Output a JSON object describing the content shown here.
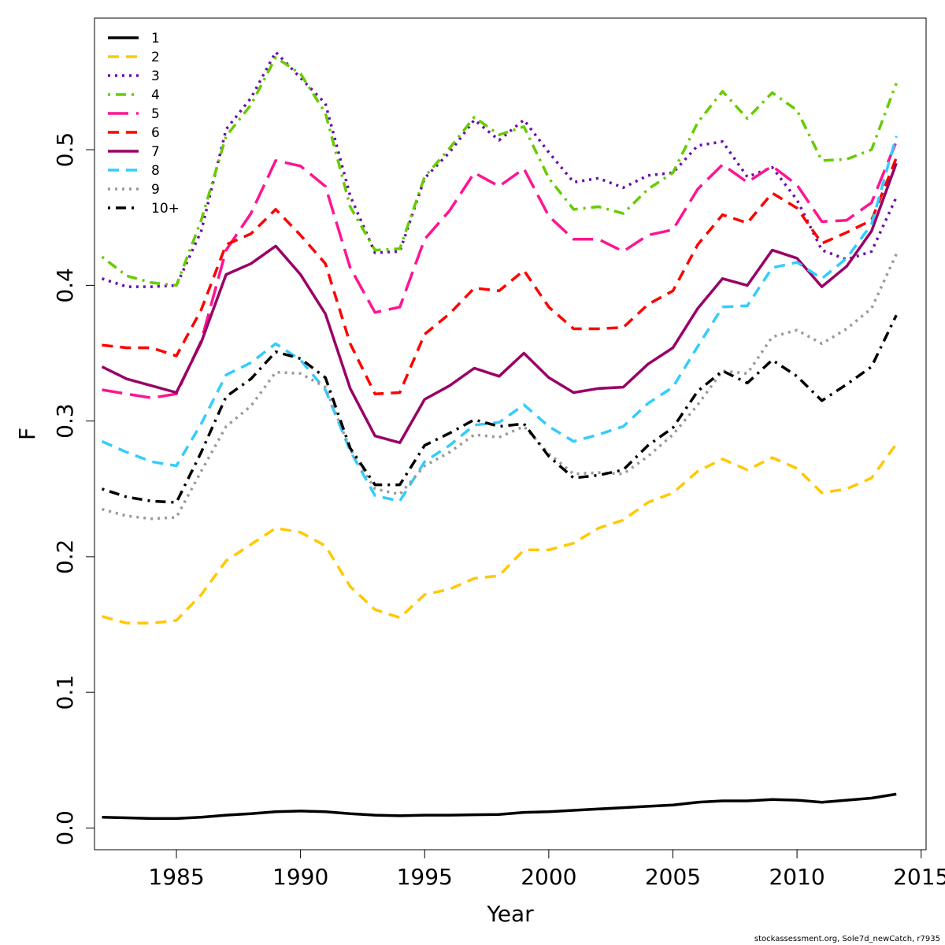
{
  "chart_data": {
    "type": "line",
    "title": "",
    "xlabel": "Year",
    "ylabel": "F",
    "xlim": [
      1981.7,
      2015.2
    ],
    "ylim": [
      -0.016,
      0.597
    ],
    "x_ticks": [
      1985,
      1990,
      1995,
      2000,
      2005,
      2010,
      2015
    ],
    "y_ticks": [
      0.0,
      0.1,
      0.2,
      0.3,
      0.4,
      0.5
    ],
    "y_tick_labels": [
      "0.0",
      "0.1",
      "0.2",
      "0.3",
      "0.4",
      "0.5"
    ],
    "grid": false,
    "legend_placement": "top-left",
    "x": [
      1982,
      1983,
      1984,
      1985,
      1986,
      1987,
      1988,
      1989,
      1990,
      1991,
      1992,
      1993,
      1994,
      1995,
      1996,
      1997,
      1998,
      1999,
      2000,
      2001,
      2002,
      2003,
      2004,
      2005,
      2006,
      2007,
      2008,
      2009,
      2010,
      2011,
      2012,
      2013,
      2014
    ],
    "series": [
      {
        "name": "1",
        "color": "#000000",
        "dash": "solid",
        "values": [
          0.008,
          0.0075,
          0.007,
          0.007,
          0.008,
          0.0095,
          0.0105,
          0.012,
          0.0125,
          0.012,
          0.0105,
          0.0095,
          0.009,
          0.0095,
          0.0095,
          0.0098,
          0.01,
          0.0115,
          0.012,
          0.013,
          0.014,
          0.015,
          0.016,
          0.017,
          0.019,
          0.02,
          0.02,
          0.021,
          0.0205,
          0.019,
          0.0205,
          0.022,
          0.025
        ]
      },
      {
        "name": "2",
        "color": "#ffc800",
        "dash": "dashed",
        "values": [
          0.156,
          0.151,
          0.151,
          0.153,
          0.172,
          0.197,
          0.209,
          0.221,
          0.218,
          0.208,
          0.178,
          0.161,
          0.155,
          0.172,
          0.176,
          0.184,
          0.186,
          0.205,
          0.205,
          0.21,
          0.221,
          0.227,
          0.24,
          0.247,
          0.263,
          0.272,
          0.264,
          0.273,
          0.265,
          0.247,
          0.25,
          0.258,
          0.283
        ]
      },
      {
        "name": "3",
        "color": "#6a0dad",
        "dash": "dotted",
        "values": [
          0.405,
          0.399,
          0.399,
          0.4,
          0.44,
          0.515,
          0.538,
          0.572,
          0.553,
          0.534,
          0.466,
          0.424,
          0.425,
          0.479,
          0.498,
          0.522,
          0.507,
          0.522,
          0.498,
          0.476,
          0.479,
          0.472,
          0.481,
          0.483,
          0.503,
          0.506,
          0.48,
          0.487,
          0.463,
          0.426,
          0.419,
          0.425,
          0.465
        ]
      },
      {
        "name": "4",
        "color": "#66cc00",
        "dash": "dotdash",
        "values": [
          0.421,
          0.407,
          0.402,
          0.4,
          0.448,
          0.51,
          0.533,
          0.568,
          0.556,
          0.527,
          0.458,
          0.426,
          0.427,
          0.48,
          0.501,
          0.524,
          0.511,
          0.517,
          0.479,
          0.456,
          0.458,
          0.453,
          0.471,
          0.483,
          0.52,
          0.543,
          0.523,
          0.542,
          0.529,
          0.492,
          0.493,
          0.5,
          0.549
        ]
      },
      {
        "name": "5",
        "color": "#ff1493",
        "dash": "longdash",
        "values": [
          0.323,
          0.32,
          0.317,
          0.32,
          0.359,
          0.426,
          0.453,
          0.492,
          0.488,
          0.473,
          0.413,
          0.38,
          0.384,
          0.434,
          0.455,
          0.483,
          0.473,
          0.486,
          0.451,
          0.434,
          0.434,
          0.425,
          0.437,
          0.441,
          0.471,
          0.489,
          0.476,
          0.488,
          0.474,
          0.447,
          0.448,
          0.461,
          0.506
        ]
      },
      {
        "name": "6",
        "color": "#ff0000",
        "dash": "dashed",
        "values": [
          0.356,
          0.354,
          0.354,
          0.348,
          0.382,
          0.43,
          0.438,
          0.456,
          0.437,
          0.416,
          0.357,
          0.32,
          0.321,
          0.364,
          0.379,
          0.398,
          0.396,
          0.411,
          0.384,
          0.368,
          0.368,
          0.369,
          0.386,
          0.396,
          0.43,
          0.452,
          0.446,
          0.468,
          0.457,
          0.431,
          0.439,
          0.448,
          0.494
        ]
      },
      {
        "name": "7",
        "color": "#990066",
        "dash": "solid",
        "values": [
          0.34,
          0.331,
          0.326,
          0.321,
          0.358,
          0.408,
          0.416,
          0.429,
          0.408,
          0.379,
          0.324,
          0.289,
          0.284,
          0.316,
          0.326,
          0.339,
          0.333,
          0.35,
          0.332,
          0.321,
          0.324,
          0.325,
          0.342,
          0.354,
          0.383,
          0.405,
          0.4,
          0.426,
          0.42,
          0.399,
          0.414,
          0.44,
          0.49
        ]
      },
      {
        "name": "8",
        "color": "#33ccff",
        "dash": "dashed",
        "values": [
          0.285,
          0.277,
          0.27,
          0.267,
          0.298,
          0.334,
          0.343,
          0.357,
          0.345,
          0.323,
          0.278,
          0.245,
          0.241,
          0.27,
          0.282,
          0.297,
          0.299,
          0.312,
          0.296,
          0.285,
          0.29,
          0.296,
          0.313,
          0.325,
          0.355,
          0.384,
          0.385,
          0.413,
          0.417,
          0.405,
          0.42,
          0.445,
          0.51
        ]
      },
      {
        "name": "9",
        "color": "#999999",
        "dash": "dotted",
        "values": [
          0.235,
          0.23,
          0.228,
          0.229,
          0.263,
          0.296,
          0.311,
          0.336,
          0.335,
          0.325,
          0.279,
          0.25,
          0.246,
          0.267,
          0.277,
          0.29,
          0.288,
          0.296,
          0.276,
          0.261,
          0.262,
          0.261,
          0.274,
          0.29,
          0.312,
          0.337,
          0.335,
          0.362,
          0.367,
          0.357,
          0.368,
          0.383,
          0.423
        ]
      },
      {
        "name": "10+",
        "color": "#000000",
        "dash": "dotdash",
        "values": [
          0.25,
          0.244,
          0.241,
          0.24,
          0.277,
          0.318,
          0.331,
          0.351,
          0.346,
          0.332,
          0.28,
          0.253,
          0.253,
          0.282,
          0.291,
          0.301,
          0.296,
          0.298,
          0.274,
          0.258,
          0.26,
          0.264,
          0.282,
          0.295,
          0.322,
          0.337,
          0.328,
          0.345,
          0.333,
          0.315,
          0.327,
          0.34,
          0.378
        ]
      }
    ]
  },
  "footnote": "stockassessment.org, Sole7d_newCatch, r7935"
}
